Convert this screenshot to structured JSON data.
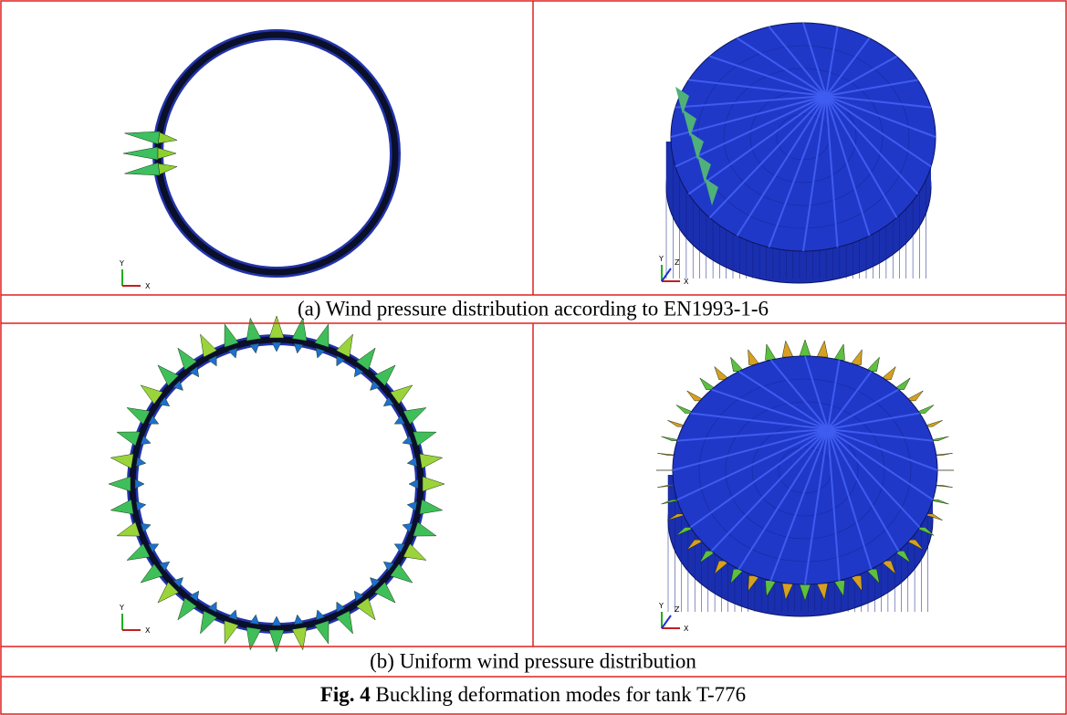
{
  "panels": [
    {
      "images": [
        {
          "triad": [
            "Y",
            "X"
          ]
        },
        {
          "triad": [
            "Y",
            "Z",
            "X"
          ]
        }
      ],
      "caption": "(a) Wind pressure distribution according to EN1993-1-6"
    },
    {
      "images": [
        {
          "triad": [
            "Y",
            "X"
          ]
        },
        {
          "triad": [
            "Y",
            "Z",
            "X"
          ]
        }
      ],
      "caption": "(b) Uniform wind pressure distribution"
    }
  ],
  "figure_caption": {
    "label": "Fig. 4",
    "text": "Buckling deformation modes for tank T-776"
  }
}
